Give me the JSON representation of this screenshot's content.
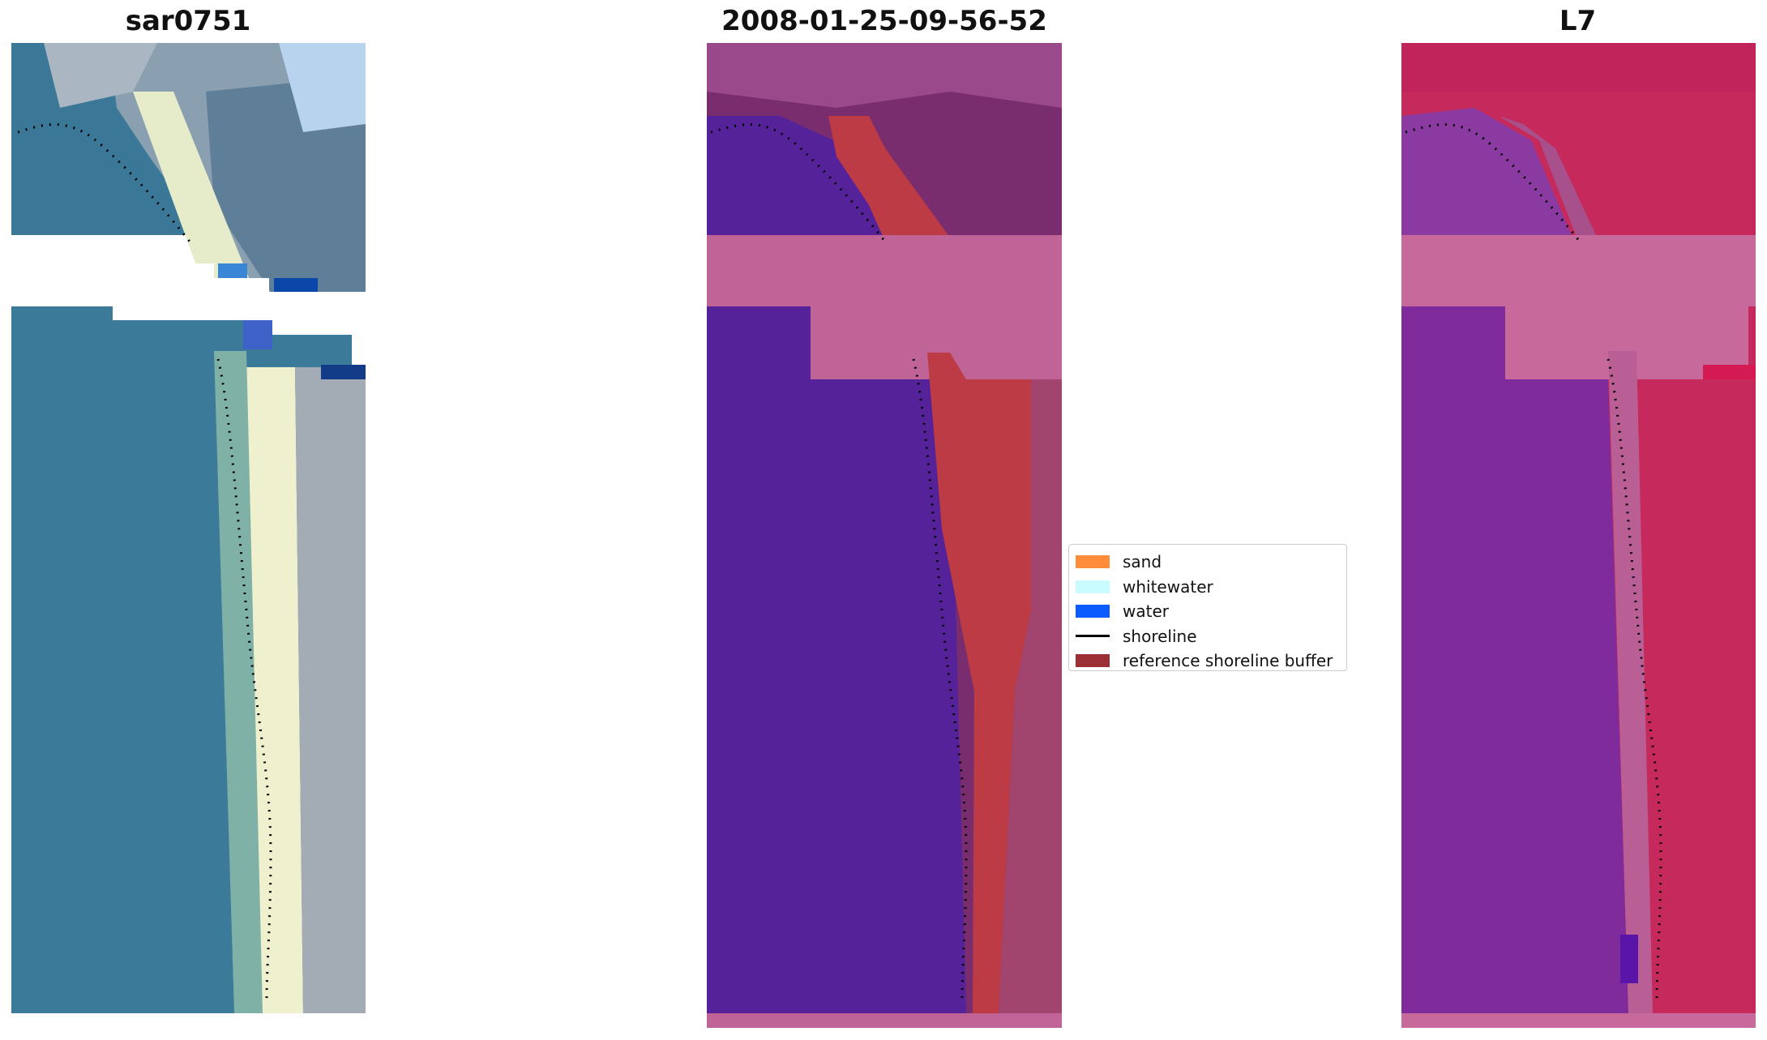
{
  "panels": [
    {
      "title": "sar0751",
      "kind": "rgb"
    },
    {
      "title": "2008-01-25-09-56-52",
      "kind": "classification"
    },
    {
      "title": "L7",
      "kind": "index"
    }
  ],
  "legend": {
    "items": [
      {
        "label": "sand",
        "color": "#ff8c3b",
        "type": "patch"
      },
      {
        "label": "whitewater",
        "color": "#c8fcff",
        "type": "patch"
      },
      {
        "label": "water",
        "color": "#0b5cff",
        "type": "patch"
      },
      {
        "label": "shoreline",
        "color": "#000000",
        "type": "line"
      },
      {
        "label": "reference shoreline buffer",
        "color": "#9b2f35",
        "type": "patch"
      }
    ]
  },
  "colors": {
    "rgb_water": "#3b7897",
    "rgb_sand": "#e8ecc8",
    "rgb_land": "#7c96a6",
    "class_water": "#55229a",
    "class_buffer": "#bd3b45",
    "class_nodata": "#c06497",
    "class_land": "#7a2d6e",
    "idx_water": "#7f2b9c",
    "idx_land": "#c62a5c",
    "idx_nodata": "#c76a9b",
    "shoreline": "#000000"
  }
}
